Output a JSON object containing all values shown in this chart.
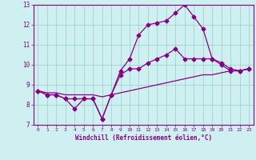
{
  "xlabel": "Windchill (Refroidissement éolien,°C)",
  "xlim": [
    -0.5,
    23.5
  ],
  "ylim": [
    7,
    13
  ],
  "yticks": [
    7,
    8,
    9,
    10,
    11,
    12,
    13
  ],
  "xticks": [
    0,
    1,
    2,
    3,
    4,
    5,
    6,
    7,
    8,
    9,
    10,
    11,
    12,
    13,
    14,
    15,
    16,
    17,
    18,
    19,
    20,
    21,
    22,
    23
  ],
  "bg_color": "#cff0f0",
  "line_color": "#880088",
  "grid_color": "#99cccc",
  "line1_x": [
    0,
    1,
    2,
    3,
    4,
    5,
    6,
    7,
    8,
    9,
    10,
    11,
    12,
    13,
    14,
    15,
    16,
    17,
    18,
    19,
    20,
    21,
    22,
    23
  ],
  "line1_y": [
    8.7,
    8.5,
    8.5,
    8.3,
    8.3,
    8.3,
    8.3,
    7.3,
    8.5,
    9.7,
    10.3,
    11.5,
    12.0,
    12.1,
    12.2,
    12.6,
    13.0,
    12.4,
    11.8,
    10.3,
    10.1,
    9.8,
    9.7,
    9.8
  ],
  "line2_x": [
    0,
    1,
    2,
    3,
    4,
    5,
    6,
    7,
    8,
    9,
    10,
    11,
    12,
    13,
    14,
    15,
    16,
    17,
    18,
    19,
    20,
    21,
    22,
    23
  ],
  "line2_y": [
    8.7,
    8.5,
    8.5,
    8.3,
    7.8,
    8.3,
    8.3,
    7.3,
    8.5,
    9.5,
    9.8,
    9.8,
    10.1,
    10.3,
    10.5,
    10.8,
    10.3,
    10.3,
    10.3,
    10.3,
    10.0,
    9.7,
    9.7,
    9.8
  ],
  "line3_x": [
    0,
    1,
    2,
    3,
    4,
    5,
    6,
    7,
    8,
    9,
    10,
    11,
    12,
    13,
    14,
    15,
    16,
    17,
    18,
    19,
    20,
    21,
    22,
    23
  ],
  "line3_y": [
    8.7,
    8.6,
    8.6,
    8.5,
    8.5,
    8.5,
    8.5,
    8.4,
    8.5,
    8.6,
    8.7,
    8.8,
    8.9,
    9.0,
    9.1,
    9.2,
    9.3,
    9.4,
    9.5,
    9.5,
    9.6,
    9.7,
    9.7,
    9.8
  ],
  "marker": "D",
  "markersize": 2.5,
  "linewidth": 0.9
}
